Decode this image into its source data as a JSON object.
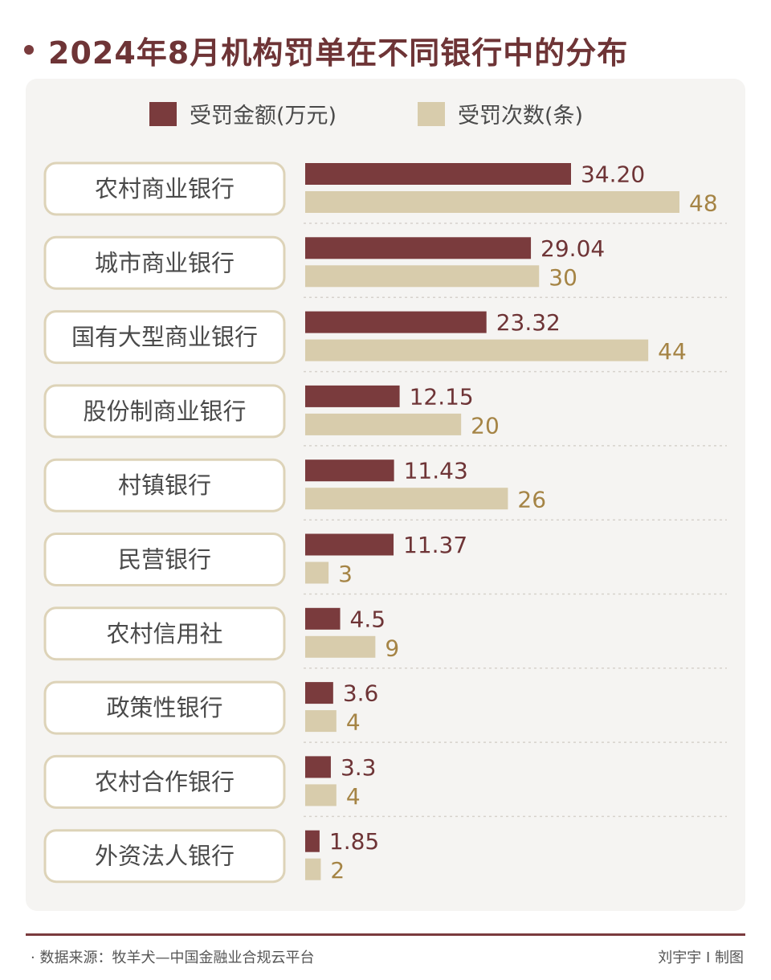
{
  "title": "2024年8月机构罚单在不同银行中的分布",
  "legend": {
    "amount_label": "受罚金额(万元)",
    "count_label": "受罚次数(条)"
  },
  "colors": {
    "amount": "#7a3b3d",
    "count": "#d8ccac",
    "amount_text": "#6e3436",
    "count_text": "#a58445",
    "title": "#6e3436",
    "category_border": "#ddd3b8",
    "category_text": "#4a4a4a"
  },
  "chart_data": {
    "type": "bar",
    "orientation": "horizontal",
    "categories": [
      "农村商业银行",
      "城市商业银行",
      "国有大型商业银行",
      "股份制商业银行",
      "村镇银行",
      "民营银行",
      "农村信用社",
      "政策性银行",
      "农村合作银行",
      "外资法人银行"
    ],
    "series": [
      {
        "name": "受罚金额(万元)",
        "values": [
          34.2,
          29.04,
          23.32,
          12.15,
          11.43,
          11.37,
          4.5,
          3.6,
          3.3,
          1.85
        ],
        "labels": [
          "34.20",
          "29.04",
          "23.32",
          "12.15",
          "11.43",
          "11.37",
          "4.5",
          "3.6",
          "3.3",
          "1.85"
        ]
      },
      {
        "name": "受罚次数(条)",
        "values": [
          48,
          30,
          44,
          20,
          26,
          3,
          9,
          4,
          4,
          2
        ],
        "labels": [
          "48",
          "30",
          "44",
          "20",
          "26",
          "3",
          "9",
          "4",
          "4",
          "2"
        ]
      }
    ],
    "legend_position": "top",
    "grid": false
  },
  "footer": {
    "source": "· 数据来源：牧羊犬—中国金融业合规云平台",
    "credit": "刘宇宇 I 制图"
  }
}
